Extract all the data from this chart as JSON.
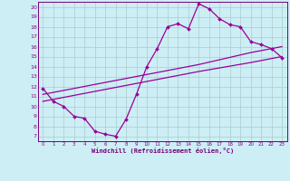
{
  "xlabel": "Windchill (Refroidissement éolien,°C)",
  "bg_color": "#cdeef5",
  "line_color": "#990099",
  "grid_color": "#aacccc",
  "xlim": [
    -0.5,
    23.5
  ],
  "ylim": [
    6.5,
    20.5
  ],
  "xticks": [
    0,
    1,
    2,
    3,
    4,
    5,
    6,
    7,
    8,
    9,
    10,
    11,
    12,
    13,
    14,
    15,
    16,
    17,
    18,
    19,
    20,
    21,
    22,
    23
  ],
  "yticks": [
    7,
    8,
    9,
    10,
    11,
    12,
    13,
    14,
    15,
    16,
    17,
    18,
    19,
    20
  ],
  "curve1_x": [
    0,
    1,
    2,
    3,
    4,
    5,
    6,
    7,
    8,
    9,
    10,
    11,
    12,
    13,
    14,
    15,
    16,
    17,
    18,
    19,
    20,
    21,
    22,
    23
  ],
  "curve1_y": [
    11.8,
    10.5,
    10.0,
    9.0,
    8.8,
    7.5,
    7.2,
    7.0,
    8.7,
    11.2,
    14.0,
    15.8,
    18.0,
    18.3,
    17.8,
    20.3,
    19.8,
    18.8,
    18.2,
    18.0,
    16.5,
    16.2,
    15.8,
    14.9
  ],
  "curve2_x": [
    0,
    5,
    10,
    15,
    20,
    23
  ],
  "curve2_y": [
    10.5,
    11.5,
    12.5,
    13.5,
    14.4,
    15.0
  ],
  "curve3_x": [
    0,
    5,
    10,
    15,
    20,
    23
  ],
  "curve3_y": [
    11.2,
    12.2,
    13.2,
    14.2,
    15.4,
    16.0
  ],
  "marker_size": 2.0,
  "line_width": 0.9
}
